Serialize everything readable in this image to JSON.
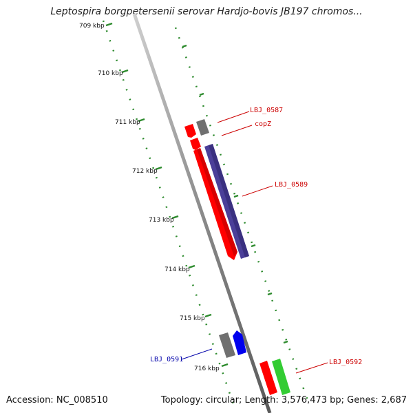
{
  "title": "Leptospira borgpetersenii serovar Hardjo-bovis JB197 chromos...",
  "footer": {
    "accession": "Accession: NC_008510",
    "stats": "Topology: circular; Length: 3,576,473 bp; Genes: 2,687"
  },
  "colors": {
    "backbone": "#8a8a8a",
    "ticks": "#2e8b2e",
    "gene_red": "#ff0000",
    "gene_gray": "#707070",
    "gene_purple": "#4b3f99",
    "gene_blue": "#0000ee",
    "gene_green": "#33cc33",
    "label_red": "#cc0000",
    "label_blue": "#0000aa"
  },
  "ticks": [
    {
      "label": "709 kbp"
    },
    {
      "label": "710 kbp"
    },
    {
      "label": "711 kbp"
    },
    {
      "label": "712 kbp"
    },
    {
      "label": "713 kbp"
    },
    {
      "label": "714 kbp"
    },
    {
      "label": "715 kbp"
    },
    {
      "label": "716 kbp"
    }
  ],
  "gene_labels": [
    {
      "text": "LBJ_0587",
      "color": "#cc0000"
    },
    {
      "text": "copZ",
      "color": "#cc0000"
    },
    {
      "text": "LBJ_0589",
      "color": "#cc0000"
    },
    {
      "text": "LBJ_0591",
      "color": "#0000aa"
    },
    {
      "text": "LBJ_0592",
      "color": "#cc0000"
    }
  ]
}
